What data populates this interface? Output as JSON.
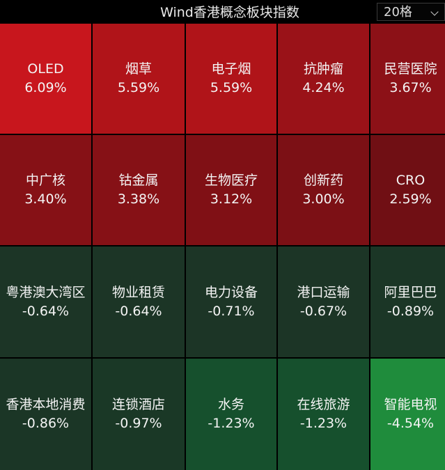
{
  "header": {
    "title": "Wind香港概念板块指数",
    "grid_select": "20格"
  },
  "tiles": [
    {
      "name": "OLED",
      "pct": "6.09%",
      "color": "#c8161d"
    },
    {
      "name": "烟草",
      "pct": "5.59%",
      "color": "#b01419"
    },
    {
      "name": "电子烟",
      "pct": "5.59%",
      "color": "#b01419"
    },
    {
      "name": "抗肿瘤",
      "pct": "4.24%",
      "color": "#9a1218"
    },
    {
      "name": "民营医院",
      "pct": "3.67%",
      "color": "#8c1117"
    },
    {
      "name": "中广核",
      "pct": "3.40%",
      "color": "#861116"
    },
    {
      "name": "钴金属",
      "pct": "3.38%",
      "color": "#861116"
    },
    {
      "name": "生物医疗",
      "pct": "3.12%",
      "color": "#801015"
    },
    {
      "name": "创新药",
      "pct": "3.00%",
      "color": "#7c1015"
    },
    {
      "name": "CRO",
      "pct": "2.59%",
      "color": "#700f14"
    },
    {
      "name": "粤港澳大湾区",
      "pct": "-0.64%",
      "color": "#1c3526"
    },
    {
      "name": "物业租赁",
      "pct": "-0.64%",
      "color": "#1c3526"
    },
    {
      "name": "电力设备",
      "pct": "-0.71%",
      "color": "#1c3526"
    },
    {
      "name": "港口运输",
      "pct": "-0.67%",
      "color": "#1c3526"
    },
    {
      "name": "阿里巴巴",
      "pct": "-0.89%",
      "color": "#1b3626"
    },
    {
      "name": "香港本地消费",
      "pct": "-0.86%",
      "color": "#1b3626"
    },
    {
      "name": "连锁酒店",
      "pct": "-0.97%",
      "color": "#1a3826"
    },
    {
      "name": "水务",
      "pct": "-1.23%",
      "color": "#16502d"
    },
    {
      "name": "在线旅游",
      "pct": "-1.23%",
      "color": "#16502d"
    },
    {
      "name": "智能电视",
      "pct": "-4.54%",
      "color": "#1f8c3c"
    }
  ]
}
